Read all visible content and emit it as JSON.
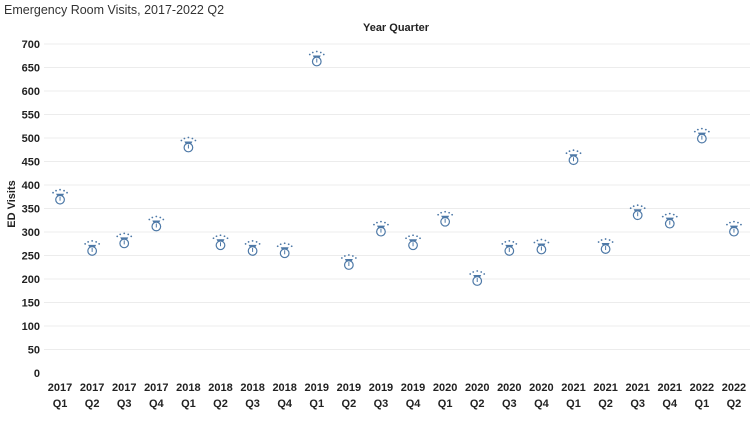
{
  "title": "Emergency Room Visits, 2017-2022 Q2",
  "colors": {
    "marker": "#4e79a7",
    "grid": "#ececec"
  },
  "chart_data": {
    "type": "scatter",
    "xlabel": "Year Quarter",
    "ylabel": "ED Visits",
    "ylim": [
      0,
      700
    ],
    "yticks": [
      0,
      50,
      100,
      150,
      200,
      250,
      300,
      350,
      400,
      450,
      500,
      550,
      600,
      650,
      700
    ],
    "grid": true,
    "categories": [
      {
        "year": "2017",
        "quarter": "Q1"
      },
      {
        "year": "2017",
        "quarter": "Q2"
      },
      {
        "year": "2017",
        "quarter": "Q3"
      },
      {
        "year": "2017",
        "quarter": "Q4"
      },
      {
        "year": "2018",
        "quarter": "Q1"
      },
      {
        "year": "2018",
        "quarter": "Q2"
      },
      {
        "year": "2018",
        "quarter": "Q3"
      },
      {
        "year": "2018",
        "quarter": "Q4"
      },
      {
        "year": "2019",
        "quarter": "Q1"
      },
      {
        "year": "2019",
        "quarter": "Q2"
      },
      {
        "year": "2019",
        "quarter": "Q3"
      },
      {
        "year": "2019",
        "quarter": "Q4"
      },
      {
        "year": "2020",
        "quarter": "Q1"
      },
      {
        "year": "2020",
        "quarter": "Q2"
      },
      {
        "year": "2020",
        "quarter": "Q3"
      },
      {
        "year": "2020",
        "quarter": "Q4"
      },
      {
        "year": "2021",
        "quarter": "Q1"
      },
      {
        "year": "2021",
        "quarter": "Q2"
      },
      {
        "year": "2021",
        "quarter": "Q3"
      },
      {
        "year": "2021",
        "quarter": "Q4"
      },
      {
        "year": "2022",
        "quarter": "Q1"
      },
      {
        "year": "2022",
        "quarter": "Q2"
      }
    ],
    "values": [
      373,
      264,
      280,
      316,
      484,
      276,
      264,
      259,
      667,
      234,
      305,
      276,
      326,
      200,
      264,
      267,
      457,
      268,
      340,
      322,
      503,
      305
    ]
  }
}
